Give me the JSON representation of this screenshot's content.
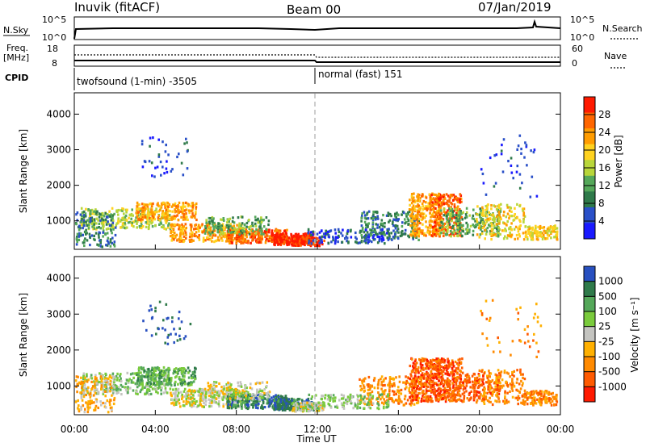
{
  "header": {
    "station": "Inuvik (fitACF)",
    "beam": "Beam 00",
    "date": "07/Jan/2019"
  },
  "summary_panel": {
    "left_label": "N.Sky",
    "left_ticks": [
      "10^5",
      "10^0"
    ],
    "right_ticks": [
      "10^5",
      "10^0"
    ],
    "right_label": "N.Search"
  },
  "freq_panel": {
    "left_label_line1": "Freq.",
    "left_label_line2": "[MHz]",
    "left_ticks": [
      "18",
      "8"
    ],
    "right_ticks": [
      "60",
      "0"
    ],
    "right_label": "Nave"
  },
  "cpid_panel": {
    "label": "CPID",
    "mode1": "twofsound (1-min) -3505",
    "mode2": "normal (fast) 151"
  },
  "colors": {
    "power": [
      "#1a1aff",
      "#2a50c8",
      "#2f7a4a",
      "#55a85a",
      "#b8d63a",
      "#ffd21f",
      "#ff9c00",
      "#ff6600",
      "#ff1a00"
    ],
    "velocity": [
      "#2850c0",
      "#2f7a4a",
      "#55a85a",
      "#7acb3c",
      "#c4c4c0",
      "#ffb000",
      "#ff8a00",
      "#ff5a00",
      "#ff1a00"
    ]
  },
  "chart_data": [
    {
      "type": "heatmap",
      "panel": "power",
      "ylabel": "Slant Range [km]",
      "ylim": [
        200,
        4600
      ],
      "yticks": [
        "1000",
        "2000",
        "3000",
        "4000"
      ],
      "xlabel": "Time UT",
      "xticks": [
        "00:00",
        "04:00",
        "08:00",
        "12:00",
        "16:00",
        "20:00",
        "00:00"
      ],
      "colorbar": {
        "label": "Power [dB]",
        "ticks": [
          "4",
          "8",
          "12",
          "16",
          "20",
          "24",
          "28"
        ],
        "range": [
          0,
          32
        ]
      }
    },
    {
      "type": "heatmap",
      "panel": "velocity",
      "ylabel": "Slant Range [km]",
      "ylim": [
        200,
        4600
      ],
      "yticks": [
        "1000",
        "2000",
        "3000",
        "4000"
      ],
      "xlabel": "Time UT",
      "xticks": [
        "00:00",
        "04:00",
        "08:00",
        "12:00",
        "16:00",
        "20:00",
        "00:00"
      ],
      "colorbar": {
        "label": "Velocity [m s⁻¹]",
        "ticks": [
          "1000",
          "500",
          "100",
          "25",
          "-25",
          "-100",
          "-500",
          "-1000"
        ]
      }
    }
  ]
}
